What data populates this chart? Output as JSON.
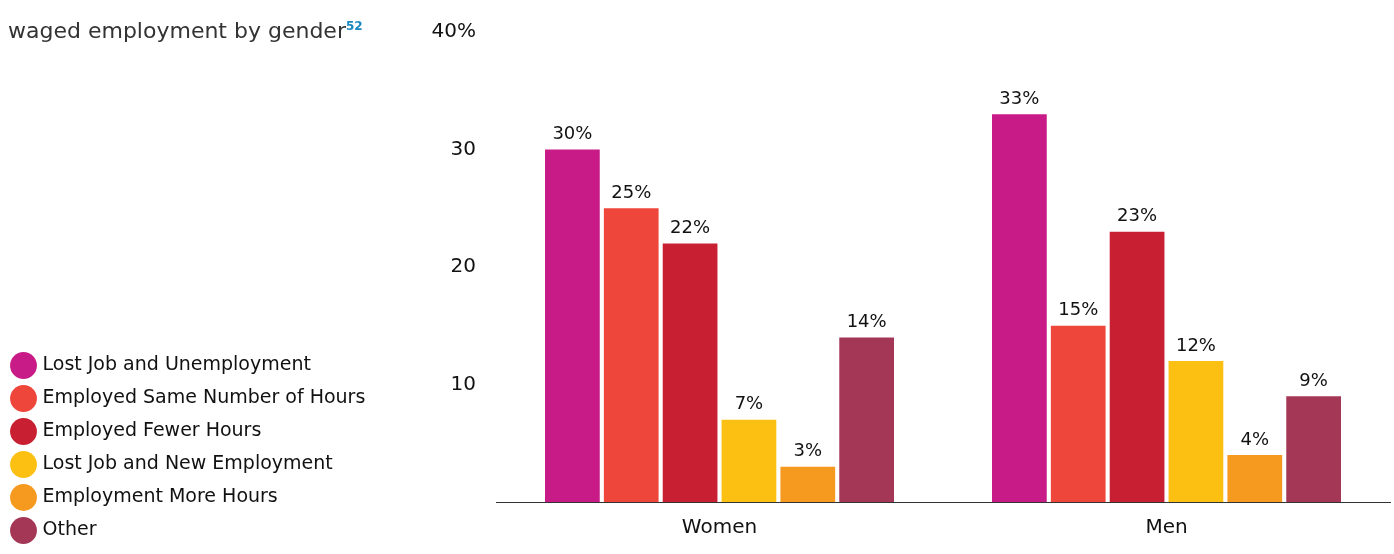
{
  "chart_data": {
    "type": "bar",
    "title": "waged employment by gender$^{52}$",
    "categories": [
      "Women",
      "Men"
    ],
    "series": [
      {
        "name": "Lost Job and Unemployment",
        "color": "#c81b87",
        "values": [
          30,
          33
        ],
        "value_labels": [
          "30%",
          "33%"
        ]
      },
      {
        "name": "Employed Same Number of Hours",
        "color": "#ef463c",
        "values": [
          25,
          15
        ],
        "value_labels": [
          "25%",
          "15%"
        ]
      },
      {
        "name": "Employed Fewer Hours",
        "color": "#c82032",
        "values": [
          22,
          23
        ],
        "value_labels": [
          "22%",
          "23%"
        ]
      },
      {
        "name": "Lost Job and New Employment",
        "color": "#fcc013",
        "values": [
          7,
          12
        ],
        "value_labels": [
          "7%",
          "12%"
        ]
      },
      {
        "name": "Employment More Hours",
        "color": "#f6991f",
        "values": [
          3,
          4
        ],
        "value_labels": [
          "3%",
          "4%"
        ]
      },
      {
        "name": "Other",
        "color": "#a43656",
        "values": [
          14,
          9
        ],
        "value_labels": [
          "14%",
          "9%"
        ]
      }
    ],
    "ylim": [
      0,
      40
    ],
    "yticks": [
      10,
      20,
      30,
      {
        "value": 40,
        "label": "40%"
      }
    ],
    "grid": false,
    "legend": "left"
  }
}
